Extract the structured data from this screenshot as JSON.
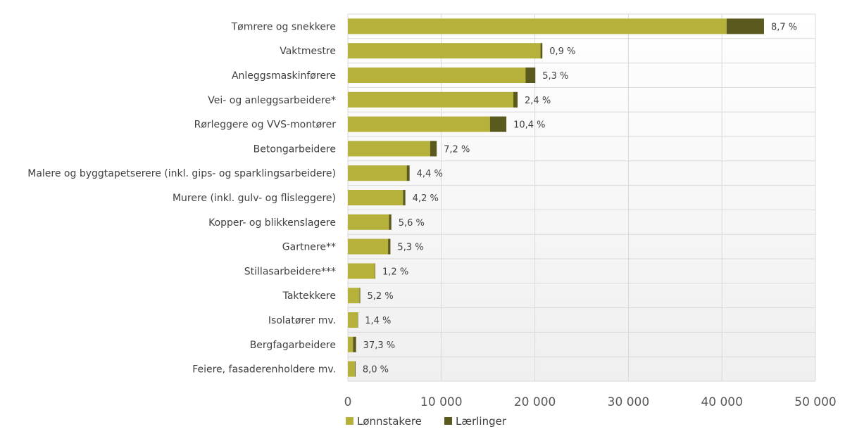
{
  "chart_data": {
    "type": "bar",
    "orientation": "horizontal",
    "stacked": true,
    "categories": [
      "Tømrere og snekkere",
      "Vaktmestre",
      "Anleggsmaskinførere",
      "Vei- og anleggsarbeidere*",
      "Rørleggere og VVS-montører",
      "Betongarbeidere",
      "Malere og byggtapetserere (inkl. gips- og sparklingsarbeidere)",
      "Murere (inkl. gulv- og flisleggere)",
      "Kopper- og blikkenslagere",
      "Gartnere**",
      "Stillasarbeidere***",
      "Taktekkere",
      "Isolatører mv.",
      "Bergfagarbeidere",
      "Feiere, fasaderenholdere mv."
    ],
    "series": [
      {
        "name": "Lønnstakere",
        "color": "#b5b13a",
        "values": [
          40500,
          20600,
          19000,
          17700,
          15200,
          8800,
          6300,
          5900,
          4400,
          4300,
          2900,
          1250,
          1050,
          550,
          750
        ]
      },
      {
        "name": "Lærlinger",
        "color": "#5a5a1e",
        "values": [
          4000,
          200,
          1050,
          450,
          1750,
          700,
          300,
          250,
          250,
          250,
          40,
          70,
          20,
          330,
          70
        ]
      }
    ],
    "percent_labels": [
      "8,7 %",
      "0,9 %",
      "5,3 %",
      "2,4 %",
      "10,4 %",
      "7,2 %",
      "4,4 %",
      "4,2 %",
      "5,6 %",
      "5,3 %",
      "1,2 %",
      "5,2 %",
      "1,4 %",
      "37,3 %",
      "8,0 %"
    ],
    "xlim": [
      0,
      50000
    ],
    "xticks": [
      0,
      10000,
      20000,
      30000,
      40000,
      50000
    ],
    "xtick_labels": [
      "0",
      "10 000",
      "20 000",
      "30 000",
      "40 000",
      "50 000"
    ],
    "grid": true,
    "legend_position": "bottom-left",
    "title": "",
    "xlabel": "",
    "ylabel": ""
  }
}
